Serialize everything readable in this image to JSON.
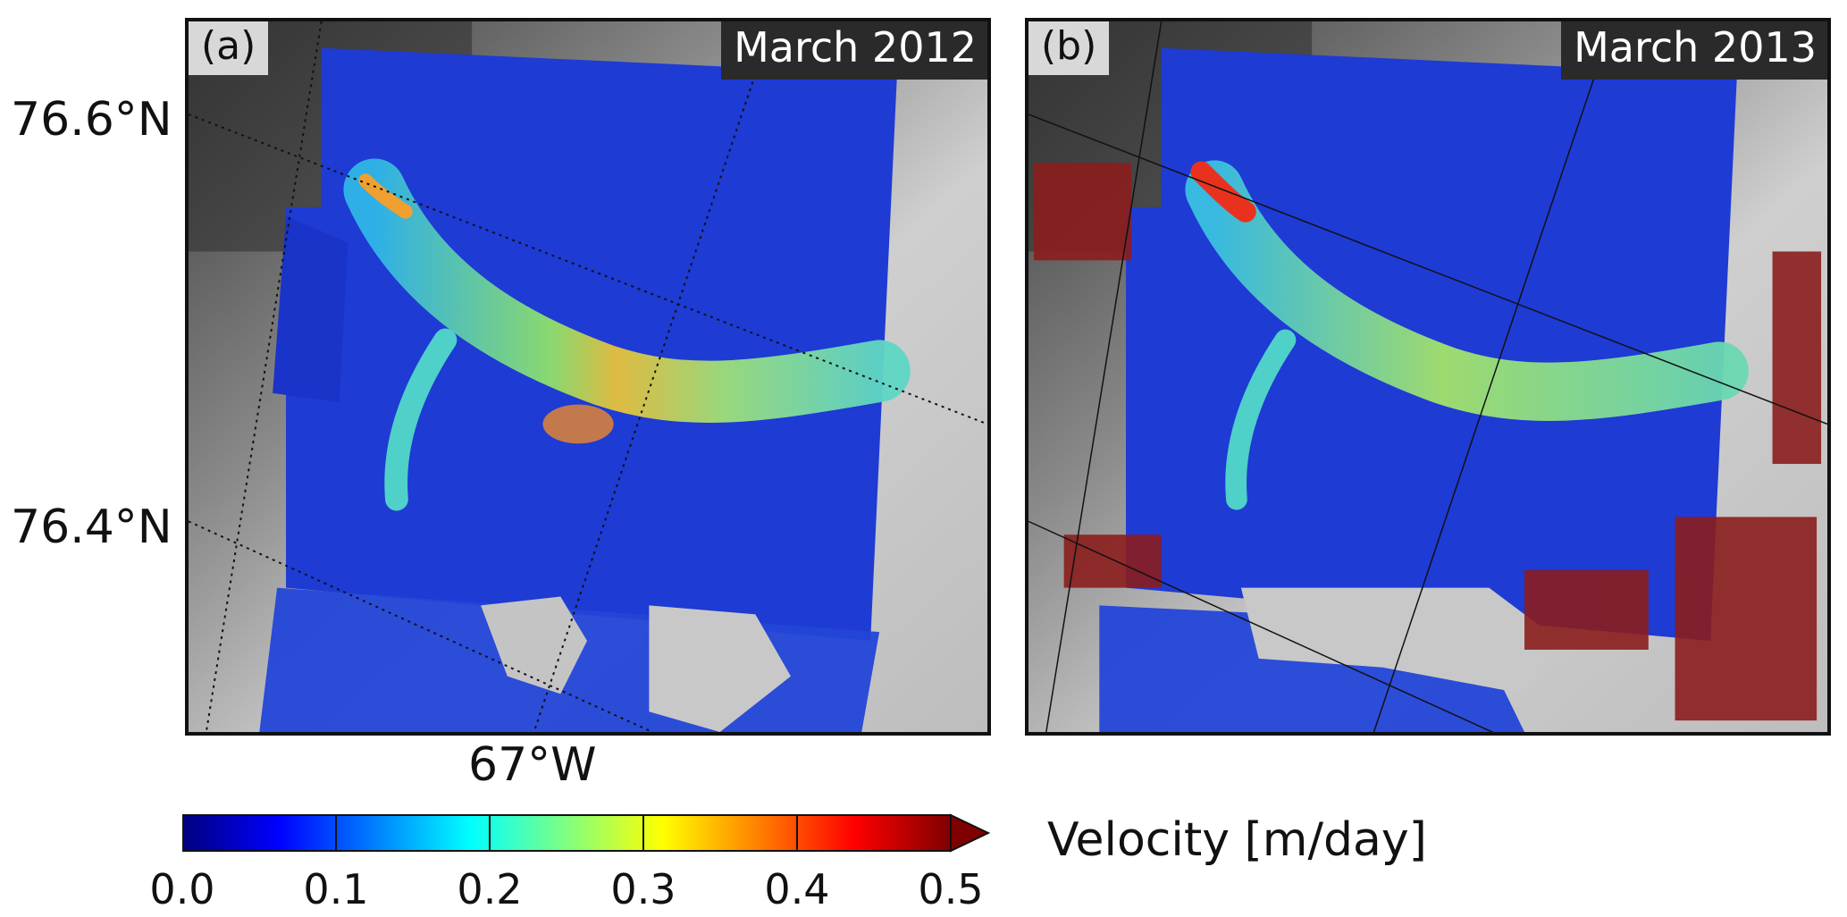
{
  "panels": [
    {
      "tag": "(a)",
      "date": "March 2012"
    },
    {
      "tag": "(b)",
      "date": "March 2013"
    }
  ],
  "lat_labels": [
    "76.6°N",
    "76.4°N"
  ],
  "lon_labels": [
    "67°W"
  ],
  "colorbar": {
    "title": "Velocity [m/day]",
    "ticks": [
      "0.0",
      "0.1",
      "0.2",
      "0.3",
      "0.4",
      "0.5"
    ],
    "range": [
      0.0,
      0.5
    ],
    "extend": "max",
    "colormap": "jet",
    "colors": [
      "#00007f",
      "#0000ff",
      "#00ffff",
      "#ffff00",
      "#ff0000",
      "#7f0000"
    ]
  }
}
